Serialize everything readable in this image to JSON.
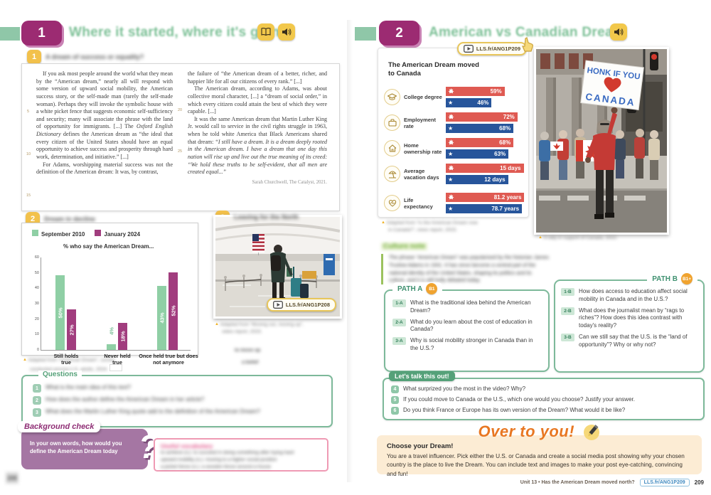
{
  "left_page": {
    "header": {
      "doc": "1",
      "title": "Where it started, where it's going"
    },
    "act1": {
      "num": "1",
      "title": "A dream of success or equality?"
    },
    "passage": {
      "p1a": "If you ask most people around the world what they mean by the “American dream,” nearly all will respond with some version of upward social mobility, the American success story, or the self-made man (rarely the self-made woman). Perhaps they will invoke the symbolic house with a white picket fence that suggests economic self-sufficiency and security; many will associate the phrase with the land of opportunity for immigrants. [...] The ",
      "p1b": "Oxford English Dictionary",
      "p1c": " defines the American dream as “the ideal that every citizen of the United States should have an equal opportunity to achieve success and prosperity through hard work, determination, and initiative.” [...]",
      "p2": "For Adams, worshipping material success was not the definition of the American dream: It was, by contrast,",
      "p3": "the failure of “the American dream of a better, richer, and happier life for all our citizens of every rank.” [...]",
      "p4": "The American dream, according to Adams, was about collective moral character, [...] a “dream of social order,” in which every citizen could attain the best of which they were capable. [...]",
      "p5a": "It was the same American dream that Martin Luther King Jr. would call to service in the civil rights struggle in 1963, when he told white America that Black Americans shared that dream: ",
      "p5b": "“I still have a dream. It is a dream deeply rooted in the American dream. I have a dream that one day this nation will rise up and live out the true meaning of its creed: “We hold these truths to be self-evident, that all men are created equal...”",
      "attribution": "Sarah Churchwell, The Catalyst, 2021.",
      "ln5": "5",
      "ln10": "10",
      "ln15": "15",
      "ln20": "20",
      "ln25": "25"
    },
    "act2": {
      "num": "2",
      "title": "Dream in decline"
    },
    "chart_caption1": "Adapted from “American Dream”, survey",
    "chart_caption2": "conducted among U.S. adults, 2024.",
    "act3": {
      "num": "3",
      "title": "Leaving for the North",
      "video_link": "LLS.fr/ANG1P208",
      "cap1": "Adapted from “Moving out, moving up”,",
      "cap2": "video report, 2023.",
      "cap3": "to move up",
      "cap4": "a belief"
    },
    "questions": {
      "title": "Questions",
      "items": [
        {
          "num": "1",
          "text": "What is the main idea of this text?"
        },
        {
          "num": "2",
          "text": "How does the author define the American Dream in her article?"
        },
        {
          "num": "3",
          "text": "What does the Martin Luther King quote add to the definition of the American Dream?"
        }
      ]
    },
    "background_check": {
      "title": "Background check",
      "body": "In your own words, how would you define the American Dream today",
      "qmark": "?"
    },
    "vocab": {
      "title": "Useful vocabulary",
      "lines": [
        "to achieve (v.): to succeed in doing something after trying hard",
        "upward mobility (n.): moving to a higher social position",
        "a picket fence (n.): a wooden fence around a house"
      ]
    },
    "page_number": "208"
  },
  "right_page": {
    "header": {
      "doc": "2",
      "title": "American vs Canadian Dream"
    },
    "caption1": "Adapted from “Is the American Dream now",
    "caption2": "in Canada?”, news report, 2023.",
    "photo": {
      "sign1": "HONK IF YOU",
      "sign2": "CANADA",
      "caption": "A rally in support of Canada, 2022."
    },
    "culture": {
      "title": "Culture note",
      "lines": [
        "The phrase “American Dream” was popularised by the historian James",
        "Truslow Adams in 1931. It has since become a central part of the",
        "national identity of the United States, shaping its politics and its",
        "culture, and it is still hotly debated today."
      ]
    },
    "path_a": {
      "label": "PATH A",
      "level": "B1",
      "items": [
        {
          "num": "1-A",
          "text": "What is the traditional idea behind the American Dream?"
        },
        {
          "num": "2-A",
          "text": "What do you learn about the cost of education in Canada?"
        },
        {
          "num": "3-A",
          "text": "Why is social mobility stronger in Canada than in the U.S.?"
        }
      ]
    },
    "path_b": {
      "label": "PATH B",
      "level": "B1+",
      "items": [
        {
          "num": "1-B",
          "text": "How does access to education affect social mobility in Canada and in the U.S.?"
        },
        {
          "num": "2-B",
          "text": "What does the journalist mean by “rags to riches”? How does this idea contrast with today's reality?"
        },
        {
          "num": "3-B",
          "text": "Can we still say that the U.S. is the “land of opportunity”? Why or why not?"
        }
      ]
    },
    "talk": {
      "label": "Let's talk this out!",
      "items": [
        {
          "num": "4",
          "text": "What surprized you the most in the video? Why?"
        },
        {
          "num": "5",
          "text": "If you could move to Canada or the U.S., which one would you choose? Justify your answer."
        },
        {
          "num": "6",
          "text": "Do you think France or Europe has its own version of the Dream? What would it be like?"
        }
      ]
    },
    "over_to_you": {
      "title": "Over to you!",
      "heading": "Choose your Dream!",
      "body": "You are a travel influencer. Pick either the U.S. or Canada and create a social media post showing why your chosen country is the place to live the Dream. You can include text and images to make your post eye-catching, convincing and fun!"
    },
    "footer": {
      "unit": "Unit 13 • Has the American Dream moved north?",
      "link": "LLS.fr/ANG1P209",
      "page": "209"
    }
  },
  "chart_data": [
    {
      "type": "bar",
      "title": "% who say the American Dream...",
      "categories": [
        "Still holds true",
        "Never held true",
        "Once held true but does not anymore"
      ],
      "series": [
        {
          "name": "September 2010",
          "color": "#8fcfa5",
          "values": [
            50,
            4,
            43
          ],
          "labels": [
            "50%",
            "4%",
            "43%"
          ]
        },
        {
          "name": "January 2024",
          "color": "#a13d7e",
          "values": [
            27,
            18,
            52
          ],
          "labels": [
            "27%",
            "18%",
            "52%"
          ]
        }
      ],
      "ylim": [
        0,
        60
      ],
      "yticks": [
        "60",
        "50",
        "40",
        "30",
        "20",
        "10",
        "0"
      ],
      "grid": false,
      "legend_position": "top-left"
    },
    {
      "type": "bar",
      "orientation": "horizontal",
      "title": "The American Dream moved to Canada",
      "video_link": "LLS.fr/ANG1P209",
      "categories": [
        "College degree",
        "Employment rate",
        "Home ownership rate",
        "Average vacation days",
        "Life expectancy"
      ],
      "series": [
        {
          "name": "Canada",
          "color": "#df5a52",
          "icon": "maple-leaf",
          "values": [
            59,
            72,
            68,
            15,
            81.2
          ],
          "labels": [
            "59%",
            "72%",
            "68%",
            "15 days",
            "81.2 years"
          ]
        },
        {
          "name": "United States",
          "color": "#27559b",
          "icon": "star",
          "values": [
            46,
            68,
            63,
            12,
            78.7
          ],
          "labels": [
            "46%",
            "68%",
            "63%",
            "12 days",
            "78.7 years"
          ]
        }
      ]
    }
  ]
}
